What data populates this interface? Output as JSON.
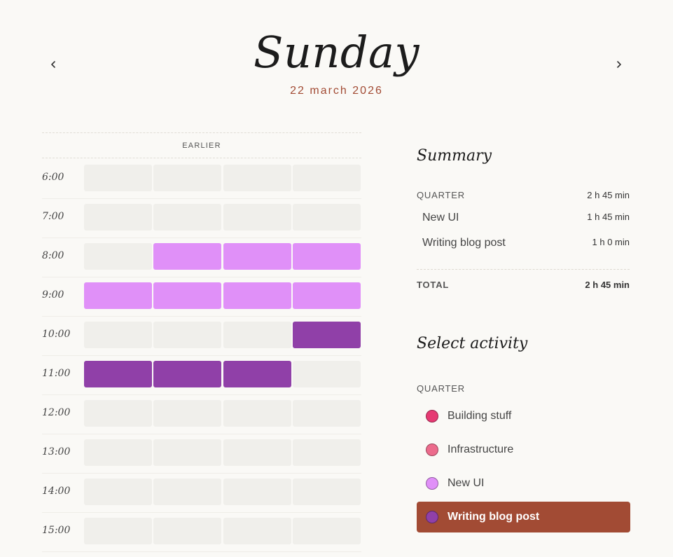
{
  "header": {
    "day": "Sunday",
    "date": "22 march 2026"
  },
  "timeline": {
    "earlier_label": "EARLIER",
    "empty_color": "#f0efeb",
    "hours": [
      {
        "time": "6:00",
        "cells": [
          null,
          null,
          null,
          null
        ]
      },
      {
        "time": "7:00",
        "cells": [
          null,
          null,
          null,
          null
        ]
      },
      {
        "time": "8:00",
        "cells": [
          null,
          "New UI",
          "New UI",
          "New UI"
        ]
      },
      {
        "time": "9:00",
        "cells": [
          "New UI",
          "New UI",
          "New UI",
          "New UI"
        ]
      },
      {
        "time": "10:00",
        "cells": [
          null,
          null,
          null,
          "Writing blog post"
        ]
      },
      {
        "time": "11:00",
        "cells": [
          "Writing blog post",
          "Writing blog post",
          "Writing blog post",
          null
        ]
      },
      {
        "time": "12:00",
        "cells": [
          null,
          null,
          null,
          null
        ]
      },
      {
        "time": "13:00",
        "cells": [
          null,
          null,
          null,
          null
        ]
      },
      {
        "time": "14:00",
        "cells": [
          null,
          null,
          null,
          null
        ]
      },
      {
        "time": "15:00",
        "cells": [
          null,
          null,
          null,
          null
        ]
      }
    ]
  },
  "summary": {
    "title": "Summary",
    "group_label": "QUARTER",
    "group_total": "2 h 45 min",
    "items": [
      {
        "name": "New UI",
        "duration": "1 h 45 min"
      },
      {
        "name": "Writing blog post",
        "duration": "1 h 0 min"
      }
    ],
    "total_label": "TOTAL",
    "total_value": "2 h 45 min"
  },
  "select_activity": {
    "title": "Select activity",
    "group_label": "QUARTER",
    "activities": [
      {
        "name": "Building stuff",
        "color": "#e63a73",
        "selected": false
      },
      {
        "name": "Infrastructure",
        "color": "#ec6b8c",
        "selected": false
      },
      {
        "name": "New UI",
        "color": "#e090f8",
        "selected": false
      },
      {
        "name": "Writing blog post",
        "color": "#9040a8",
        "selected": true
      }
    ]
  },
  "icons": {
    "prev": "chevron-left-icon",
    "next": "chevron-right-icon"
  },
  "colors": {
    "accent": "#a24b34",
    "background": "#faf9f6"
  }
}
